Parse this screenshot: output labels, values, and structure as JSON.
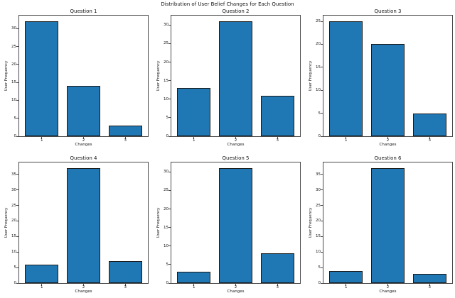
{
  "figure": {
    "suptitle": "Distribution of User Belief Changes for Each Question",
    "bar_color": "#1f77b4",
    "bar_edge_color": "#1a1a1a",
    "xlim": [
      0.46,
      3.54
    ],
    "bar_width": 0.8
  },
  "chart_data": [
    {
      "type": "bar",
      "title": "Question 1",
      "categories": [
        "1",
        "2",
        "3"
      ],
      "values": [
        32,
        14,
        3
      ],
      "xlabel": "Changes",
      "ylabel": "User Frequency",
      "ylim": [
        0,
        33.6
      ],
      "yticks": [
        0,
        5,
        10,
        15,
        20,
        25,
        30
      ]
    },
    {
      "type": "bar",
      "title": "Question 2",
      "categories": [
        "1",
        "2",
        "3"
      ],
      "values": [
        13,
        31,
        11
      ],
      "xlabel": "Changes",
      "ylabel": "User Frequency",
      "ylim": [
        0,
        32.55
      ],
      "yticks": [
        0,
        5,
        10,
        15,
        20,
        25,
        30
      ]
    },
    {
      "type": "bar",
      "title": "Question 3",
      "categories": [
        "1",
        "2",
        "3"
      ],
      "values": [
        25,
        20,
        5
      ],
      "xlabel": "Changes",
      "ylabel": "User Frequency",
      "ylim": [
        0,
        26.25
      ],
      "yticks": [
        0,
        5,
        10,
        15,
        20,
        25
      ]
    },
    {
      "type": "bar",
      "title": "Question 4",
      "categories": [
        "1",
        "2",
        "3"
      ],
      "values": [
        6,
        37,
        7
      ],
      "xlabel": "Changes",
      "ylabel": "User Frequency",
      "ylim": [
        0,
        38.85
      ],
      "yticks": [
        0,
        5,
        10,
        15,
        20,
        25,
        30,
        35
      ]
    },
    {
      "type": "bar",
      "title": "Question 5",
      "categories": [
        "1",
        "2",
        "3"
      ],
      "values": [
        3,
        31,
        8
      ],
      "xlabel": "Changes",
      "ylabel": "User Frequency",
      "ylim": [
        0,
        32.55
      ],
      "yticks": [
        0,
        5,
        10,
        15,
        20,
        25,
        30
      ]
    },
    {
      "type": "bar",
      "title": "Question 6",
      "categories": [
        "1",
        "2",
        "3"
      ],
      "values": [
        4,
        37,
        3
      ],
      "xlabel": "Changes",
      "ylabel": "User Frequency",
      "ylim": [
        0,
        38.85
      ],
      "yticks": [
        0,
        5,
        10,
        15,
        20,
        25,
        30,
        35
      ]
    }
  ]
}
